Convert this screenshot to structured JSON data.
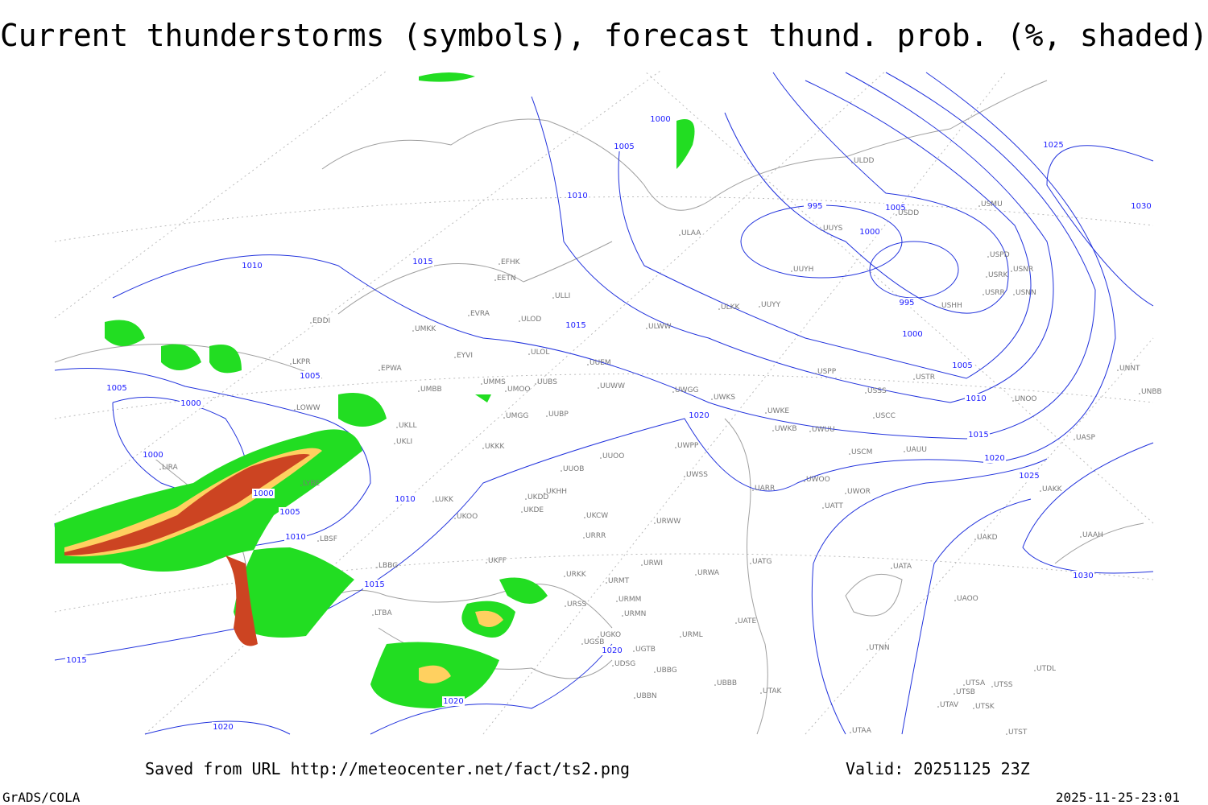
{
  "header": {
    "title": "Current thunderstorms (symbols), forecast thund. prob. (%, shaded)"
  },
  "map": {
    "isobar_labels": [
      1000,
      1005,
      1010,
      1015,
      1010,
      995,
      1005,
      1000,
      995,
      1000,
      1005,
      1010,
      1015,
      1020,
      1025,
      1030,
      1030,
      1025,
      1015,
      1020,
      1010,
      1015,
      1020,
      1020,
      1020,
      1015,
      1005,
      1005,
      1000,
      1000,
      1000,
      1005,
      1010
    ],
    "stations": [
      "ULAA",
      "UUYS",
      "UUYH",
      "USDD",
      "USMU",
      "ULDD",
      "EFHK",
      "EETN",
      "EVRA",
      "ULOD",
      "ULLI",
      "ULKK",
      "UUYY",
      "ULWW",
      "UMKK",
      "EDDI",
      "EYVI",
      "ULOL",
      "UUEM",
      "EPWA",
      "UMMS",
      "UMOO",
      "UUBS",
      "UUWW",
      "UWGG",
      "UWKS",
      "USPP",
      "USTR",
      "USSS",
      "UMBB",
      "LKPR",
      "LOWW",
      "UKLL",
      "UKLI",
      "UMGG",
      "UUBP",
      "UWKE",
      "UWKB",
      "UWUU",
      "USCC",
      "USCM",
      "UAUU",
      "UWPP",
      "UKKK",
      "UUOO",
      "UUOB",
      "UWSS",
      "UARR",
      "UWOO",
      "UWOR",
      "UATT",
      "LIRA",
      "LYBE",
      "LUKK",
      "UKHH",
      "UKDD",
      "UKDE",
      "UKOO",
      "UKCW",
      "URWW",
      "URRR",
      "LBSF",
      "UKFF",
      "LBBG",
      "URKK",
      "URMT",
      "URWI",
      "URWA",
      "UATG",
      "UATA",
      "URSS",
      "URMM",
      "URMN",
      "LTBA",
      "UATE",
      "UGKO",
      "UGSB",
      "UGTB",
      "URML",
      "UTNN",
      "UDSG",
      "UBBG",
      "UBBB",
      "UTAK",
      "UBBN",
      "UTSA",
      "UTSS",
      "UTSB",
      "UTAV",
      "UTSK",
      "UTAA",
      "UTST",
      "UTDL",
      "UAKD",
      "UAAH",
      "UAOO",
      "UAKK",
      "UASP",
      "UNOO",
      "UNBB",
      "UNNT",
      "USNN",
      "USRR",
      "USNR",
      "USRK",
      "USPD",
      "USHH"
    ]
  },
  "footer": {
    "source": "Saved from URL http://meteocenter.net/fact/ts2.png",
    "valid": "Valid: 20251125 23Z",
    "software": "GrADS/COLA",
    "timestamp": "2025-11-25-23:01"
  }
}
